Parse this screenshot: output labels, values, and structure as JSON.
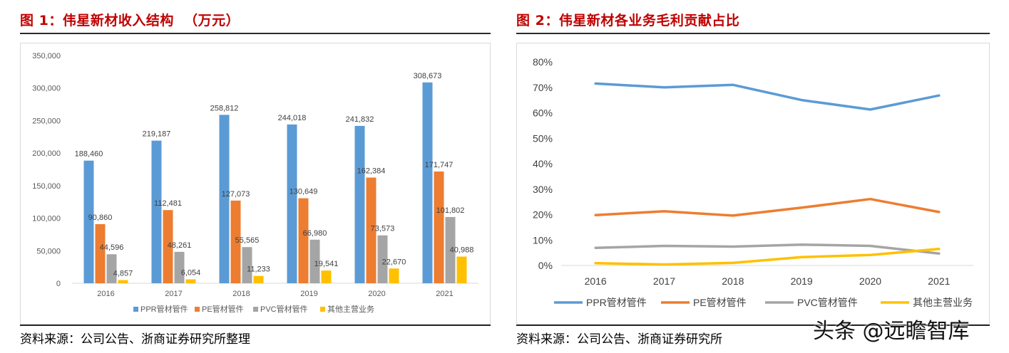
{
  "left": {
    "title": "图 1：伟星新材收入结构  （万元）",
    "source": "资料来源：公司公告、浙商证券研究所整理"
  },
  "right": {
    "title": "图 2：伟星新材各业务毛利贡献占比",
    "source": "资料来源：公司公告、浙商证券研究所"
  },
  "watermark": "头条 @远瞻智库",
  "chart_data": [
    {
      "type": "bar",
      "title": "图 1：伟星新材收入结构  （万元）",
      "categories": [
        "2016",
        "2017",
        "2018",
        "2019",
        "2020",
        "2021"
      ],
      "ylim": [
        0,
        350000
      ],
      "yticks": [
        0,
        50000,
        100000,
        150000,
        200000,
        250000,
        300000,
        350000
      ],
      "ytick_labels": [
        "0",
        "50,000",
        "100,000",
        "150,000",
        "200,000",
        "250,000",
        "300,000",
        "350,000"
      ],
      "legend_position": "bottom",
      "grid": false,
      "series": [
        {
          "name": "PPR管材管件",
          "color": "#5b9bd5",
          "values": [
            188460,
            219187,
            258812,
            244018,
            241832,
            308673
          ],
          "labels": [
            "188,460",
            "219,187",
            "258,812",
            "244,018",
            "241,832",
            "308,673"
          ]
        },
        {
          "name": "PE管材管件",
          "color": "#ed7d31",
          "values": [
            90860,
            112481,
            127073,
            130649,
            162384,
            171747
          ],
          "labels": [
            "90,860",
            "112,481",
            "127,073",
            "130,649",
            "162,384",
            "171,747"
          ]
        },
        {
          "name": "PVC管材管件",
          "color": "#a5a5a5",
          "values": [
            44596,
            48261,
            55565,
            66980,
            73573,
            101802
          ],
          "labels": [
            "44,596",
            "48,261",
            "55,565",
            "66,980",
            "73,573",
            "101,802"
          ]
        },
        {
          "name": "其他主营业务",
          "color": "#ffc000",
          "values": [
            4857,
            6054,
            11233,
            19541,
            22670,
            40988
          ],
          "labels": [
            "4,857",
            "6,054",
            "11,233",
            "19,541",
            "22,670",
            "40,988"
          ]
        }
      ]
    },
    {
      "type": "line",
      "title": "图 2：伟星新材各业务毛利贡献占比",
      "categories": [
        "2016",
        "2017",
        "2018",
        "2019",
        "2020",
        "2021"
      ],
      "ylim": [
        0,
        0.8
      ],
      "yticks": [
        0,
        0.1,
        0.2,
        0.3,
        0.4,
        0.5,
        0.6,
        0.7,
        0.8
      ],
      "ytick_labels": [
        "0%",
        "10%",
        "20%",
        "30%",
        "40%",
        "50%",
        "60%",
        "70%",
        "80%"
      ],
      "legend_position": "bottom",
      "grid": false,
      "series": [
        {
          "name": "PPR管材管件",
          "color": "#5b9bd5",
          "values": [
            0.715,
            0.7,
            0.71,
            0.65,
            0.613,
            0.668
          ]
        },
        {
          "name": "PE管材管件",
          "color": "#ed7d31",
          "values": [
            0.198,
            0.213,
            0.196,
            0.227,
            0.261,
            0.21
          ]
        },
        {
          "name": "PVC管材管件",
          "color": "#a5a5a5",
          "values": [
            0.069,
            0.077,
            0.074,
            0.082,
            0.077,
            0.047
          ]
        },
        {
          "name": "其他主营业务",
          "color": "#ffc000",
          "values": [
            0.009,
            0.004,
            0.01,
            0.033,
            0.041,
            0.065
          ]
        }
      ]
    }
  ]
}
